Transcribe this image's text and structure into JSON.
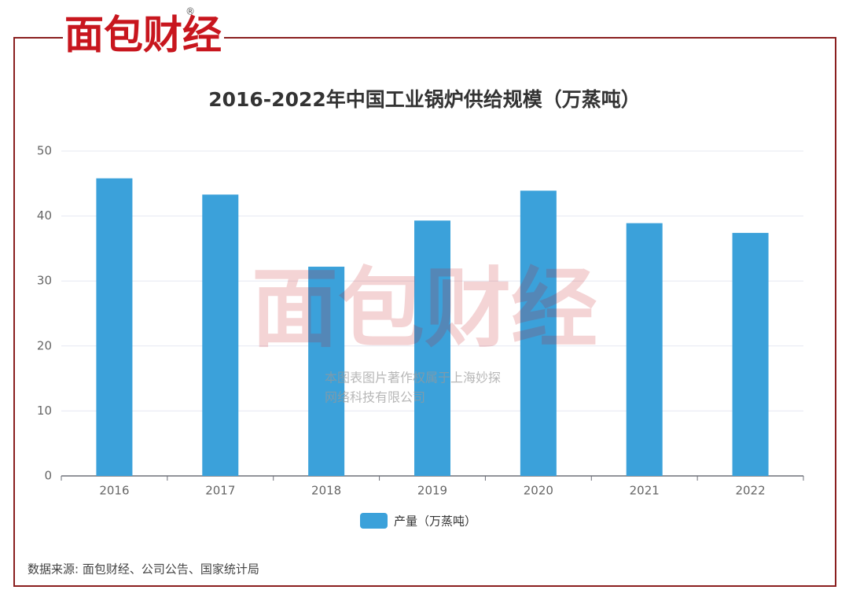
{
  "brand": "面包财经",
  "chart_data": {
    "type": "bar",
    "title": "2016-2022年中国工业锅炉供给规模（万蒸吨）",
    "categories": [
      "2016",
      "2017",
      "2018",
      "2019",
      "2020",
      "2021",
      "2022"
    ],
    "series": [
      {
        "name": "产量（万蒸吨）",
        "color": "#3ba1da",
        "values": [
          45.8,
          43.3,
          32.2,
          39.3,
          43.9,
          38.9,
          37.4
        ]
      }
    ],
    "ylim": [
      0,
      50
    ],
    "yticks": [
      0,
      10,
      20,
      30,
      40,
      50
    ],
    "grid": true,
    "legend": "bottom",
    "watermark": [
      "本图表图片著作权属于上海妙探",
      "网络科技有限公司"
    ],
    "source": "数据来源: 面包财经、公司公告、国家统计局"
  }
}
